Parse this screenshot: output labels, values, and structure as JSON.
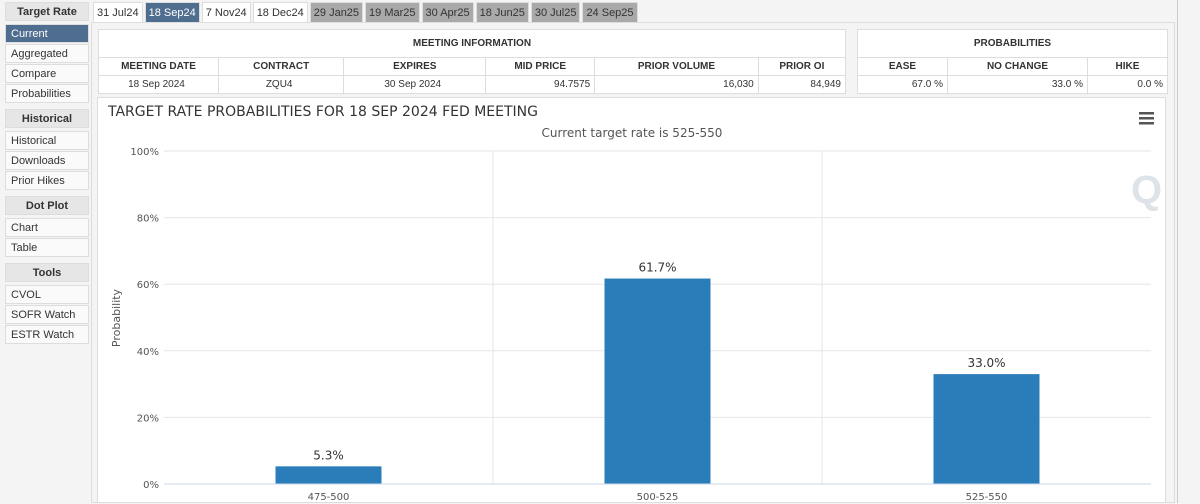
{
  "sidebar": {
    "groups": [
      {
        "title": "Target Rate",
        "items": [
          "Current",
          "Aggregated",
          "Compare",
          "Probabilities"
        ]
      },
      {
        "title": "Historical",
        "items": [
          "Historical",
          "Downloads",
          "Prior Hikes"
        ]
      },
      {
        "title": "Dot Plot",
        "items": [
          "Chart",
          "Table"
        ]
      },
      {
        "title": "Tools",
        "items": [
          "CVOL",
          "SOFR Watch",
          "ESTR Watch"
        ]
      }
    ],
    "active": "Current"
  },
  "tabs": [
    {
      "label": "31 Jul24",
      "state": "normal"
    },
    {
      "label": "18 Sep24",
      "state": "active"
    },
    {
      "label": "7 Nov24",
      "state": "normal"
    },
    {
      "label": "18 Dec24",
      "state": "normal"
    },
    {
      "label": "29 Jan25",
      "state": "disabled"
    },
    {
      "label": "19 Mar25",
      "state": "disabled"
    },
    {
      "label": "30 Apr25",
      "state": "disabled"
    },
    {
      "label": "18 Jun25",
      "state": "disabled"
    },
    {
      "label": "30 Jul25",
      "state": "disabled"
    },
    {
      "label": "24 Sep25",
      "state": "disabled"
    }
  ],
  "meeting": {
    "caption": "MEETING INFORMATION",
    "headers": [
      "MEETING DATE",
      "CONTRACT",
      "EXPIRES",
      "MID PRICE",
      "PRIOR VOLUME",
      "PRIOR OI"
    ],
    "values": [
      "18 Sep 2024",
      "ZQU4",
      "30 Sep 2024",
      "94.7575",
      "16,030",
      "84,949"
    ]
  },
  "probabilities": {
    "caption": "PROBABILITIES",
    "headers": [
      "EASE",
      "NO CHANGE",
      "HIKE"
    ],
    "values": [
      "67.0 %",
      "33.0 %",
      "0.0 %"
    ]
  },
  "chart_data": {
    "type": "bar",
    "title": "TARGET RATE PROBABILITIES FOR 18 SEP 2024 FED MEETING",
    "subtitle": "Current target rate is 525-550",
    "ylabel": "Probability",
    "xlabel": "",
    "categories": [
      "475-500",
      "500-525",
      "525-550"
    ],
    "values": [
      5.3,
      61.7,
      33.0
    ],
    "data_labels": [
      "5.3%",
      "61.7%",
      "33.0%"
    ],
    "ylim": [
      0,
      100
    ],
    "yticks": [
      "0%",
      "20%",
      "40%",
      "60%",
      "80%",
      "100%"
    ],
    "bar_color": "#2a7db8",
    "grid": true
  }
}
